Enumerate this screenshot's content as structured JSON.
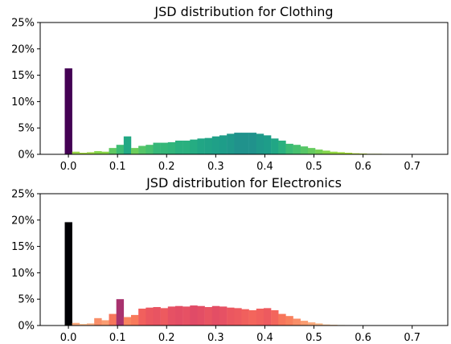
{
  "chart_data": [
    {
      "type": "bar",
      "title": "JSD distribution for Clothing",
      "xlabel": "",
      "ylabel": "",
      "xlim": [
        -0.05,
        0.78
      ],
      "ylim": [
        0,
        25
      ],
      "bin_width": 0.0149,
      "x_ticks": [
        {
          "value": 0.0,
          "label": "0.0"
        },
        {
          "value": 0.1,
          "label": "0.1"
        },
        {
          "value": 0.2,
          "label": "0.2"
        },
        {
          "value": 0.3,
          "label": "0.3"
        },
        {
          "value": 0.4,
          "label": "0.4"
        },
        {
          "value": 0.5,
          "label": "0.5"
        },
        {
          "value": 0.6,
          "label": "0.6"
        },
        {
          "value": 0.7,
          "label": "0.7"
        }
      ],
      "y_ticks": [
        {
          "value": 0,
          "label": "0%"
        },
        {
          "value": 5,
          "label": "5%"
        },
        {
          "value": 10,
          "label": "10%"
        },
        {
          "value": 15,
          "label": "15%"
        },
        {
          "value": 20,
          "label": "20%"
        },
        {
          "value": 25,
          "label": "25%"
        }
      ],
      "bins": [
        {
          "x": 0.0,
          "value": 16.3,
          "color": "#440154"
        },
        {
          "x": 0.015,
          "value": 0.5,
          "color": "#9ad64a"
        },
        {
          "x": 0.03,
          "value": 0.3,
          "color": "#a2d83e"
        },
        {
          "x": 0.045,
          "value": 0.4,
          "color": "#9cd745"
        },
        {
          "x": 0.06,
          "value": 0.6,
          "color": "#86d549"
        },
        {
          "x": 0.075,
          "value": 0.5,
          "color": "#8ad547"
        },
        {
          "x": 0.09,
          "value": 1.2,
          "color": "#5ec962"
        },
        {
          "x": 0.105,
          "value": 1.8,
          "color": "#3dbc74"
        },
        {
          "x": 0.12,
          "value": 3.4,
          "color": "#22a884"
        },
        {
          "x": 0.135,
          "value": 1.2,
          "color": "#6ccd5a"
        },
        {
          "x": 0.15,
          "value": 1.6,
          "color": "#54c568"
        },
        {
          "x": 0.165,
          "value": 1.8,
          "color": "#46c06f"
        },
        {
          "x": 0.18,
          "value": 2.2,
          "color": "#35b779"
        },
        {
          "x": 0.195,
          "value": 2.2,
          "color": "#35b779"
        },
        {
          "x": 0.21,
          "value": 2.3,
          "color": "#31b57b"
        },
        {
          "x": 0.225,
          "value": 2.6,
          "color": "#2ab07f"
        },
        {
          "x": 0.24,
          "value": 2.6,
          "color": "#2ab07f"
        },
        {
          "x": 0.255,
          "value": 2.8,
          "color": "#25ac82"
        },
        {
          "x": 0.27,
          "value": 3.0,
          "color": "#21a685"
        },
        {
          "x": 0.285,
          "value": 3.1,
          "color": "#20a386"
        },
        {
          "x": 0.3,
          "value": 3.4,
          "color": "#1fa088"
        },
        {
          "x": 0.315,
          "value": 3.6,
          "color": "#1e9d89"
        },
        {
          "x": 0.33,
          "value": 3.9,
          "color": "#1f998a"
        },
        {
          "x": 0.345,
          "value": 4.1,
          "color": "#20928c"
        },
        {
          "x": 0.36,
          "value": 4.1,
          "color": "#20928c"
        },
        {
          "x": 0.375,
          "value": 4.1,
          "color": "#20928c"
        },
        {
          "x": 0.39,
          "value": 3.9,
          "color": "#1f998a"
        },
        {
          "x": 0.405,
          "value": 3.6,
          "color": "#1e9d89"
        },
        {
          "x": 0.42,
          "value": 3.0,
          "color": "#21a685"
        },
        {
          "x": 0.435,
          "value": 2.6,
          "color": "#2ab07f"
        },
        {
          "x": 0.45,
          "value": 2.0,
          "color": "#3bbb75"
        },
        {
          "x": 0.465,
          "value": 1.8,
          "color": "#46c06f"
        },
        {
          "x": 0.48,
          "value": 1.5,
          "color": "#56c667"
        },
        {
          "x": 0.495,
          "value": 1.2,
          "color": "#65cb5e"
        },
        {
          "x": 0.51,
          "value": 0.9,
          "color": "#75d054"
        },
        {
          "x": 0.525,
          "value": 0.7,
          "color": "#84d44b"
        },
        {
          "x": 0.54,
          "value": 0.5,
          "color": "#93d741"
        },
        {
          "x": 0.555,
          "value": 0.4,
          "color": "#9cd93b"
        },
        {
          "x": 0.57,
          "value": 0.3,
          "color": "#a5db36"
        },
        {
          "x": 0.585,
          "value": 0.2,
          "color": "#b0dd2f"
        },
        {
          "x": 0.6,
          "value": 0.15,
          "color": "#b5de2b"
        },
        {
          "x": 0.615,
          "value": 0.1,
          "color": "#bddf26"
        },
        {
          "x": 0.63,
          "value": 0.1,
          "color": "#c2df23"
        },
        {
          "x": 0.645,
          "value": 0.08,
          "color": "#c8e020"
        },
        {
          "x": 0.66,
          "value": 0.06,
          "color": "#cde11d"
        },
        {
          "x": 0.675,
          "value": 0.05,
          "color": "#d2e21b"
        },
        {
          "x": 0.69,
          "value": 0.04,
          "color": "#d8e219"
        },
        {
          "x": 0.705,
          "value": 0.03,
          "color": "#dde318"
        },
        {
          "x": 0.72,
          "value": 0.02,
          "color": "#e2e418"
        }
      ]
    },
    {
      "type": "bar",
      "title": "JSD distribution for Electronics",
      "xlabel": "",
      "ylabel": "",
      "xlim": [
        -0.05,
        0.78
      ],
      "ylim": [
        0,
        25
      ],
      "bin_width": 0.0149,
      "x_ticks": [
        {
          "value": 0.0,
          "label": "0.0"
        },
        {
          "value": 0.1,
          "label": "0.1"
        },
        {
          "value": 0.2,
          "label": "0.2"
        },
        {
          "value": 0.3,
          "label": "0.3"
        },
        {
          "value": 0.4,
          "label": "0.4"
        },
        {
          "value": 0.5,
          "label": "0.5"
        },
        {
          "value": 0.6,
          "label": "0.6"
        },
        {
          "value": 0.7,
          "label": "0.7"
        }
      ],
      "y_ticks": [
        {
          "value": 0,
          "label": "0%"
        },
        {
          "value": 5,
          "label": "5%"
        },
        {
          "value": 10,
          "label": "10%"
        },
        {
          "value": 15,
          "label": "15%"
        },
        {
          "value": 20,
          "label": "20%"
        },
        {
          "value": 25,
          "label": "25%"
        }
      ],
      "bins": [
        {
          "x": 0.0,
          "value": 19.6,
          "color": "#000004"
        },
        {
          "x": 0.015,
          "value": 0.5,
          "color": "#fba97d"
        },
        {
          "x": 0.03,
          "value": 0.3,
          "color": "#fcc092"
        },
        {
          "x": 0.045,
          "value": 0.4,
          "color": "#fbb287"
        },
        {
          "x": 0.06,
          "value": 1.4,
          "color": "#f98e68"
        },
        {
          "x": 0.075,
          "value": 1.0,
          "color": "#fa9d72"
        },
        {
          "x": 0.09,
          "value": 2.2,
          "color": "#f7765b"
        },
        {
          "x": 0.105,
          "value": 5.0,
          "color": "#a8326e"
        },
        {
          "x": 0.12,
          "value": 1.6,
          "color": "#f9855f"
        },
        {
          "x": 0.135,
          "value": 2.0,
          "color": "#f87a5b"
        },
        {
          "x": 0.15,
          "value": 3.2,
          "color": "#f1605d"
        },
        {
          "x": 0.165,
          "value": 3.4,
          "color": "#eb5760"
        },
        {
          "x": 0.18,
          "value": 3.5,
          "color": "#e85462"
        },
        {
          "x": 0.195,
          "value": 3.3,
          "color": "#ed5a5f"
        },
        {
          "x": 0.21,
          "value": 3.6,
          "color": "#e65164"
        },
        {
          "x": 0.225,
          "value": 3.7,
          "color": "#e34e65"
        },
        {
          "x": 0.24,
          "value": 3.6,
          "color": "#e65164"
        },
        {
          "x": 0.255,
          "value": 3.8,
          "color": "#e04b67"
        },
        {
          "x": 0.27,
          "value": 3.7,
          "color": "#e34e65"
        },
        {
          "x": 0.285,
          "value": 3.5,
          "color": "#e85462"
        },
        {
          "x": 0.3,
          "value": 3.7,
          "color": "#e34e65"
        },
        {
          "x": 0.315,
          "value": 3.6,
          "color": "#e65164"
        },
        {
          "x": 0.33,
          "value": 3.4,
          "color": "#eb5760"
        },
        {
          "x": 0.345,
          "value": 3.3,
          "color": "#ed5a5f"
        },
        {
          "x": 0.36,
          "value": 3.1,
          "color": "#f0605d"
        },
        {
          "x": 0.375,
          "value": 2.9,
          "color": "#f3655c"
        },
        {
          "x": 0.39,
          "value": 3.2,
          "color": "#f1605d"
        },
        {
          "x": 0.405,
          "value": 3.3,
          "color": "#ed5a5f"
        },
        {
          "x": 0.42,
          "value": 2.9,
          "color": "#f3655c"
        },
        {
          "x": 0.435,
          "value": 2.2,
          "color": "#f7765b"
        },
        {
          "x": 0.45,
          "value": 1.8,
          "color": "#f8805d"
        },
        {
          "x": 0.465,
          "value": 1.3,
          "color": "#f98e68"
        },
        {
          "x": 0.48,
          "value": 0.9,
          "color": "#fa9d72"
        },
        {
          "x": 0.495,
          "value": 0.6,
          "color": "#fbab7e"
        },
        {
          "x": 0.51,
          "value": 0.4,
          "color": "#fcb98a"
        },
        {
          "x": 0.525,
          "value": 0.2,
          "color": "#fcc696"
        },
        {
          "x": 0.54,
          "value": 0.15,
          "color": "#fcd0a3"
        },
        {
          "x": 0.555,
          "value": 0.1,
          "color": "#fcdab0"
        },
        {
          "x": 0.57,
          "value": 0.08,
          "color": "#fce2bd"
        },
        {
          "x": 0.585,
          "value": 0.05,
          "color": "#fcebc8"
        },
        {
          "x": 0.6,
          "value": 0.04,
          "color": "#fcf1d4"
        },
        {
          "x": 0.615,
          "value": 0.03,
          "color": "#fcf5dc"
        },
        {
          "x": 0.63,
          "value": 0.02,
          "color": "#fcf8e2"
        },
        {
          "x": 0.645,
          "value": 0.02,
          "color": "#fcfae8"
        },
        {
          "x": 0.66,
          "value": 0.01,
          "color": "#fcfbee"
        },
        {
          "x": 0.675,
          "value": 0.01,
          "color": "#fcfcf2"
        },
        {
          "x": 0.69,
          "value": 0.01,
          "color": "#fcfdf6"
        }
      ]
    }
  ]
}
